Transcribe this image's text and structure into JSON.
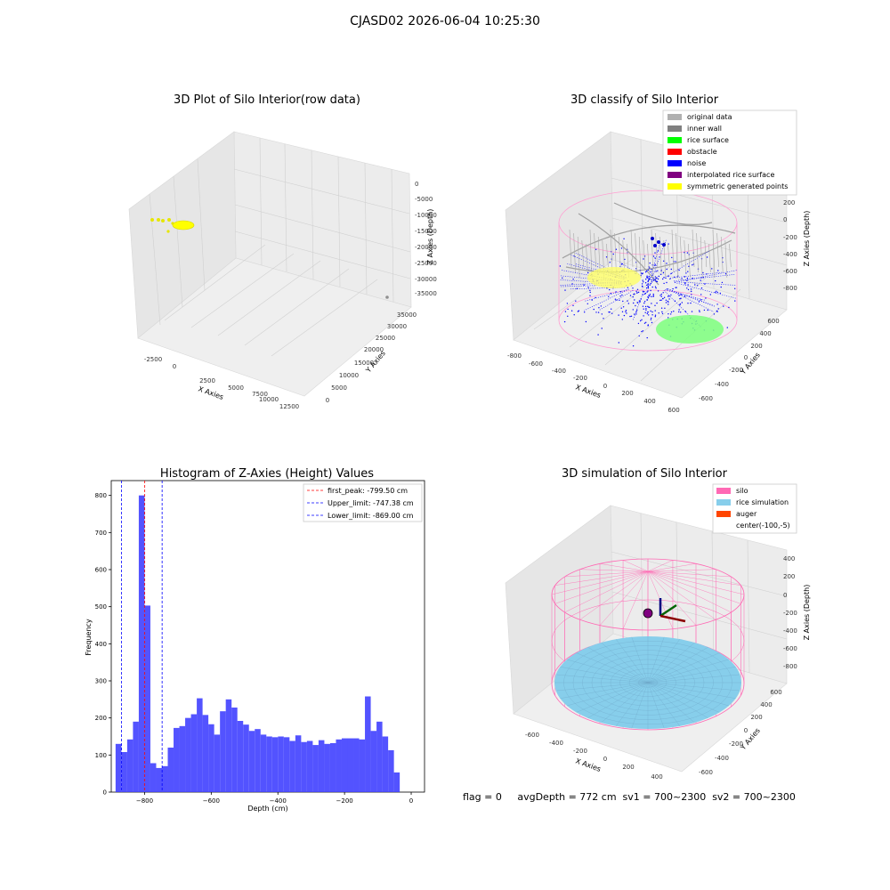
{
  "figure": {
    "suptitle": "CJASD02 2026-06-04 10:25:30",
    "footer": "flag = 0     avgDepth = 772 cm  sv1 = 700~2300  sv2 = 700~2300"
  },
  "panels": {
    "raw": {
      "title": "3D Plot of Silo Interior(row data)",
      "xlabel": "X Axies",
      "ylabel": "Y Axies",
      "zlabel": "Z Axies (Depth)",
      "xticks": [
        "-2500",
        "0",
        "2500",
        "5000",
        "7500",
        "10000",
        "12500"
      ],
      "yticks": [
        "0",
        "5000",
        "10000",
        "15000",
        "20000",
        "25000",
        "30000",
        "35000"
      ],
      "zticks": [
        "0",
        "-5000",
        "-10000",
        "-15000",
        "-20000",
        "-25000",
        "-30000",
        "-35000"
      ],
      "colors": {
        "symmetric": "#ffff00",
        "original": "#b0b0b0"
      }
    },
    "classify": {
      "title": "3D classify of Silo Interior",
      "xlabel": "X Axies",
      "ylabel": "Y Axies",
      "zlabel": "Z Axies (Depth)",
      "xticks": [
        "-800",
        "-600",
        "-400",
        "-200",
        "0",
        "200",
        "400",
        "600"
      ],
      "yticks": [
        "-600",
        "-400",
        "-200",
        "0",
        "200",
        "400",
        "600"
      ],
      "zticks": [
        "200",
        "0",
        "-200",
        "-400",
        "-600",
        "-800"
      ],
      "legend": [
        {
          "label": "original data",
          "color": "#b0b0b0"
        },
        {
          "label": "inner wall",
          "color": "#808080"
        },
        {
          "label": "rice surface",
          "color": "#00ff00"
        },
        {
          "label": "obstacle",
          "color": "#ff0000"
        },
        {
          "label": "noise",
          "color": "#0000ff"
        },
        {
          "label": "interpolated rice surface",
          "color": "#800080"
        },
        {
          "label": "symmetric generated points",
          "color": "#ffff00"
        }
      ]
    },
    "simulation": {
      "title": "3D simulation of Silo Interior",
      "xlabel": "X Axies",
      "ylabel": "Y Axies",
      "zlabel": "Z Axies (Depth)",
      "xticks": [
        "-600",
        "-400",
        "-200",
        "0",
        "200",
        "400"
      ],
      "yticks": [
        "-600",
        "-400",
        "-200",
        "0",
        "200",
        "400",
        "600"
      ],
      "zticks": [
        "400",
        "200",
        "0",
        "-200",
        "-400",
        "-600",
        "-800"
      ],
      "legend": [
        {
          "label": "silo",
          "color": "#ff69b4"
        },
        {
          "label": "rice simulation",
          "color": "#87ceeb"
        },
        {
          "label": "auger",
          "color": "#ff4500"
        },
        {
          "label": "center(-100,-5)",
          "color": ""
        }
      ],
      "colors": {
        "silo": "#ff69b4",
        "rice": "#87ceeb",
        "rice_edge": "#6fa8c9",
        "auger": "#800080"
      }
    }
  },
  "chart_data": [
    {
      "type": "bar",
      "title": "Histogram of Z-Axies (Height) Values",
      "xlabel": "Depth (cm)",
      "ylabel": "Frequency",
      "xlim": [
        -900,
        40
      ],
      "ylim": [
        0,
        840
      ],
      "xticks": [
        -800,
        -600,
        -400,
        -200,
        0
      ],
      "yticks": [
        0,
        100,
        200,
        300,
        400,
        500,
        600,
        700,
        800
      ],
      "bar_color": "#4040ff",
      "bin_edges_start": -887,
      "bin_width": 17.4,
      "values": [
        130,
        108,
        142,
        190,
        800,
        503,
        78,
        65,
        70,
        120,
        173,
        178,
        200,
        210,
        253,
        208,
        183,
        155,
        218,
        250,
        228,
        192,
        182,
        165,
        170,
        155,
        150,
        148,
        150,
        148,
        138,
        153,
        135,
        138,
        127,
        140,
        130,
        132,
        142,
        145,
        145,
        145,
        142,
        258,
        165,
        190,
        150,
        113,
        53
      ],
      "reference_lines": [
        {
          "label": "first_peak: -799.50 cm",
          "x": -799.5,
          "color": "#ff0000"
        },
        {
          "label": "Upper_limit: -747.38 cm",
          "x": -747.38,
          "color": "#0000ff"
        },
        {
          "label": "Lower_limit: -869.00 cm",
          "x": -869.0,
          "color": "#0000ff"
        }
      ],
      "legend_position": "top-right"
    }
  ]
}
